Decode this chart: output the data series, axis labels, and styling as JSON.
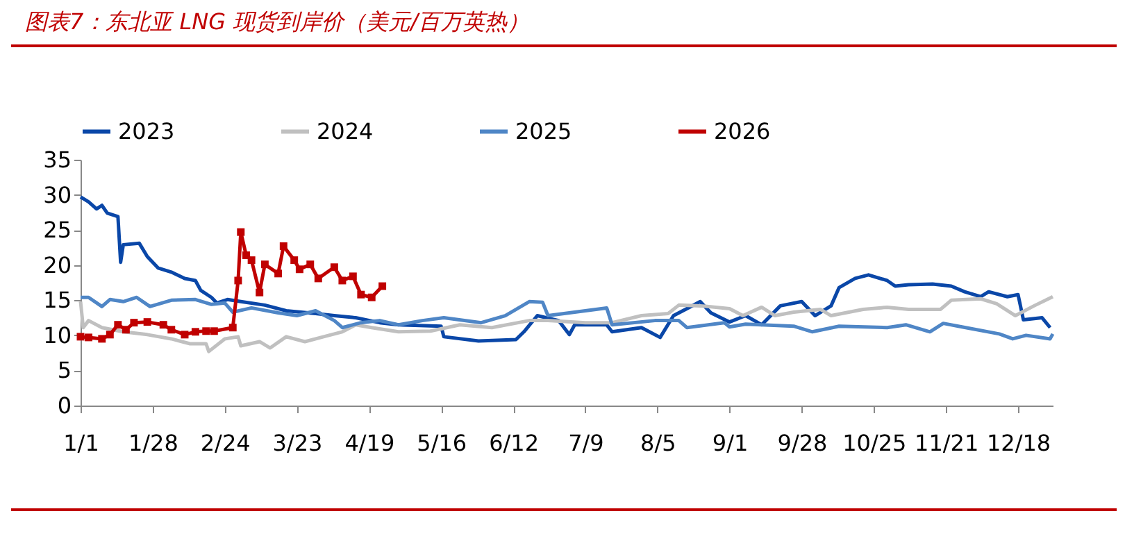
{
  "chart_data": {
    "type": "line",
    "title": "图表7：东北亚 LNG 现货到岸价（美元/百万英热）",
    "xlim": [
      "--01-01",
      "--12-31"
    ],
    "xticks": [
      {
        "value": "--01-01",
        "label": "1/1"
      },
      {
        "value": "--01-28",
        "label": "1/28"
      },
      {
        "value": "--02-24",
        "label": "2/24"
      },
      {
        "value": "--03-23",
        "label": "3/23"
      },
      {
        "value": "--04-19",
        "label": "4/19"
      },
      {
        "value": "--05-16",
        "label": "5/16"
      },
      {
        "value": "--06-12",
        "label": "6/12"
      },
      {
        "value": "--07-09",
        "label": "7/9"
      },
      {
        "value": "--08-05",
        "label": "8/5"
      },
      {
        "value": "--09-01",
        "label": "9/1"
      },
      {
        "value": "--09-28",
        "label": "9/28"
      },
      {
        "value": "--10-25",
        "label": "10/25"
      },
      {
        "value": "--11-21",
        "label": "11/21"
      },
      {
        "value": "--12-18",
        "label": "12/18"
      }
    ],
    "ylim": [
      0,
      35
    ],
    "yticks": [
      0,
      5,
      10,
      15,
      20,
      25,
      30,
      35
    ],
    "grid": false,
    "legend": "top",
    "series": [
      {
        "name": "2023",
        "color": "#0a47a8",
        "x": [
          "--01-01",
          "--01-04",
          "--01-07",
          "--01-09",
          "--01-11",
          "--01-15",
          "--01-16",
          "--01-17",
          "--01-23",
          "--01-26",
          "--01-30",
          "--02-04",
          "--02-09",
          "--02-13",
          "--02-15",
          "--02-19",
          "--02-21",
          "--02-25",
          "--03-02",
          "--03-11",
          "--03-19",
          "--03-30",
          "--04-06",
          "--04-14",
          "--04-23",
          "--04-30",
          "--05-16",
          "--05-17",
          "--05-30",
          "--06-13",
          "--06-16",
          "--06-21",
          "--06-29",
          "--07-03",
          "--07-05",
          "--07-17",
          "--07-19",
          "--07-30",
          "--08-06",
          "--08-11",
          "--08-16",
          "--08-21",
          "--08-25",
          "--09-01",
          "--09-07",
          "--09-13",
          "--09-20",
          "--09-28",
          "--10-03",
          "--10-09",
          "--10-12",
          "--10-18",
          "--10-23",
          "--10-30",
          "--11-02",
          "--11-07",
          "--11-16",
          "--11-23",
          "--11-28",
          "--12-04",
          "--12-07",
          "--12-14",
          "--12-18",
          "--12-20",
          "--12-27",
          "--12-30"
        ],
        "values": [
          29.7,
          29.0,
          28.0,
          28.5,
          27.4,
          26.9,
          20.4,
          22.9,
          23.1,
          21.2,
          19.6,
          19.0,
          18.1,
          17.8,
          16.4,
          15.4,
          14.6,
          15.1,
          14.8,
          14.3,
          13.5,
          13.1,
          12.8,
          12.5,
          11.8,
          11.5,
          11.3,
          9.8,
          9.2,
          9.4,
          10.5,
          12.8,
          12.1,
          10.1,
          11.5,
          11.5,
          10.5,
          11.1,
          9.7,
          12.8,
          13.8,
          14.8,
          13.2,
          11.9,
          12.8,
          11.5,
          14.2,
          14.8,
          12.8,
          14.2,
          16.8,
          18.1,
          18.6,
          17.8,
          17.0,
          17.2,
          17.3,
          17.0,
          16.2,
          15.5,
          16.2,
          15.5,
          15.8,
          12.2,
          12.5,
          11.1
        ]
      },
      {
        "name": "2024",
        "color": "#c0c0c0",
        "x": [
          "--01-01",
          "--01-02",
          "--01-04",
          "--01-09",
          "--01-17",
          "--01-26",
          "--02-04",
          "--02-11",
          "--02-17",
          "--02-18",
          "--02-24",
          "--03-01",
          "--03-02",
          "--03-09",
          "--03-13",
          "--03-19",
          "--03-26",
          "--04-02",
          "--04-09",
          "--04-14",
          "--04-20",
          "--04-30",
          "--05-12",
          "--05-23",
          "--06-04",
          "--06-18",
          "--06-25",
          "--07-09",
          "--07-19",
          "--07-30",
          "--08-09",
          "--08-13",
          "--08-21",
          "--09-01",
          "--09-06",
          "--09-13",
          "--09-18",
          "--09-25",
          "--10-05",
          "--10-09",
          "--10-21",
          "--10-30",
          "--11-07",
          "--11-19",
          "--11-23",
          "--12-04",
          "--12-10",
          "--12-17",
          "--12-24",
          "--12-31"
        ],
        "values": [
          14.8,
          11.1,
          12.1,
          11.1,
          10.5,
          10.1,
          9.5,
          8.8,
          8.8,
          7.7,
          9.5,
          9.8,
          8.5,
          9.1,
          8.2,
          9.8,
          9.1,
          9.8,
          10.5,
          11.5,
          11.1,
          10.5,
          10.6,
          11.5,
          11.1,
          12.1,
          12.1,
          11.8,
          11.8,
          12.8,
          13.1,
          14.3,
          14.2,
          13.8,
          12.8,
          14.0,
          12.8,
          13.3,
          13.7,
          12.8,
          13.7,
          14.0,
          13.7,
          13.7,
          15.0,
          15.2,
          14.5,
          12.8,
          14.2,
          15.5
        ]
      },
      {
        "name": "2025",
        "color": "#4f86c6",
        "x": [
          "--01-01",
          "--01-04",
          "--01-09",
          "--01-12",
          "--01-17",
          "--01-22",
          "--01-27",
          "--02-04",
          "--02-13",
          "--02-19",
          "--02-24",
          "--02-27",
          "--03-06",
          "--03-16",
          "--03-23",
          "--03-30",
          "--04-06",
          "--04-09",
          "--04-16",
          "--04-23",
          "--04-30",
          "--05-09",
          "--05-17",
          "--05-31",
          "--06-09",
          "--06-18",
          "--06-23",
          "--06-25",
          "--07-07",
          "--07-17",
          "--07-19",
          "--08-04",
          "--08-13",
          "--08-16",
          "--08-30",
          "--09-01",
          "--09-07",
          "--09-25",
          "--10-02",
          "--10-12",
          "--10-30",
          "--11-06",
          "--11-15",
          "--11-20",
          "--11-27",
          "--12-11",
          "--12-16",
          "--12-21",
          "--12-30",
          "--12-31"
        ],
        "values": [
          15.4,
          15.4,
          14.1,
          15.1,
          14.8,
          15.4,
          14.1,
          15.0,
          15.1,
          14.4,
          14.6,
          13.3,
          13.9,
          13.2,
          12.8,
          13.5,
          12.1,
          11.1,
          11.8,
          12.1,
          11.5,
          12.1,
          12.5,
          11.8,
          12.8,
          14.8,
          14.7,
          12.8,
          13.4,
          13.9,
          11.5,
          12.1,
          12.1,
          11.1,
          11.8,
          11.2,
          11.6,
          11.3,
          10.5,
          11.3,
          11.1,
          11.5,
          10.5,
          11.7,
          11.2,
          10.2,
          9.5,
          10.0,
          9.5,
          10.2
        ]
      },
      {
        "name": "2026",
        "color": "#c00000",
        "marker": "square",
        "x": [
          "--01-01",
          "--01-04",
          "--01-09",
          "--01-12",
          "--01-15",
          "--01-18",
          "--01-21",
          "--01-26",
          "--02-01",
          "--02-04",
          "--02-09",
          "--02-13",
          "--02-17",
          "--02-20",
          "--02-27",
          "--03-01",
          "--03-02",
          "--03-04",
          "--03-06",
          "--03-09",
          "--03-11",
          "--03-16",
          "--03-18",
          "--03-22",
          "--03-24",
          "--03-28",
          "--03-31",
          "--04-06",
          "--04-09",
          "--04-13",
          "--04-16",
          "--04-20",
          "--04-24"
        ],
        "values": [
          9.8,
          9.7,
          9.5,
          10.1,
          11.5,
          10.8,
          11.8,
          11.9,
          11.5,
          10.8,
          10.1,
          10.5,
          10.6,
          10.6,
          11.1,
          17.8,
          24.7,
          21.4,
          20.7,
          16.1,
          20.1,
          18.8,
          22.7,
          20.7,
          19.4,
          20.1,
          18.1,
          19.7,
          17.8,
          18.4,
          15.8,
          15.4,
          17.0
        ]
      }
    ]
  }
}
